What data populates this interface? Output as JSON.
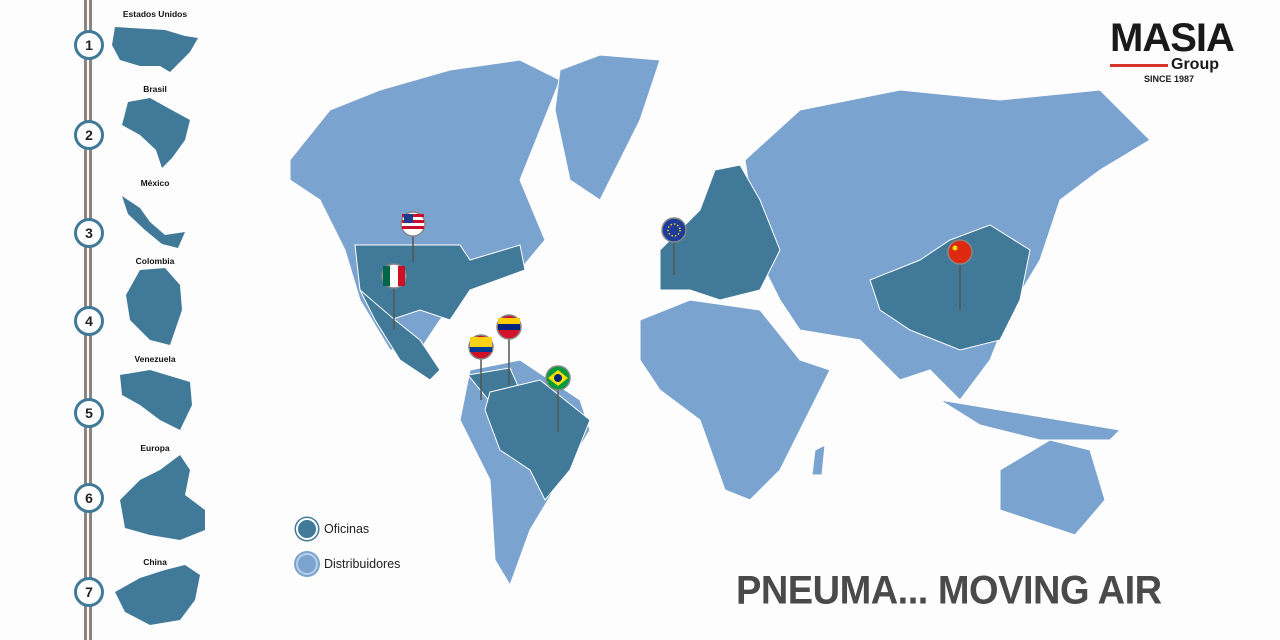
{
  "brand": {
    "name": "MASIA",
    "sub": "Group",
    "since": "SINCE 1987",
    "accent": "#d9342b"
  },
  "tagline": "PNEUMA... MOVING AIR",
  "colors": {
    "offices": "#417a98",
    "distributors": "#7ba3cf"
  },
  "legend": [
    {
      "label": "Oficinas",
      "icon": "office-dot"
    },
    {
      "label": "Distribuidores",
      "icon": "distributor-dot"
    }
  ],
  "locations": [
    {
      "number": "1",
      "name": "Estados Unidos",
      "flag": "usa-flag"
    },
    {
      "number": "2",
      "name": "Brasil",
      "flag": "brazil-flag"
    },
    {
      "number": "3",
      "name": "México",
      "flag": "mexico-flag"
    },
    {
      "number": "4",
      "name": "Colombia",
      "flag": "colombia-flag"
    },
    {
      "number": "5",
      "name": "Venezuela",
      "flag": "venezuela-flag"
    },
    {
      "number": "6",
      "name": "Europa",
      "flag": "eu-flag"
    },
    {
      "number": "7",
      "name": "China",
      "flag": "china-flag"
    }
  ]
}
